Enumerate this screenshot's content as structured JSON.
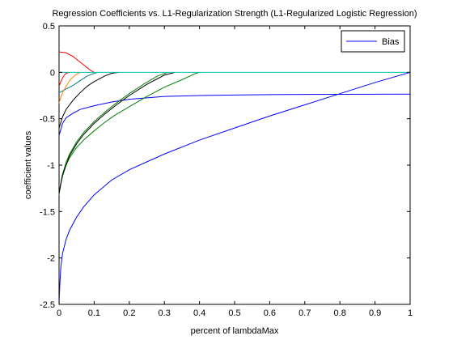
{
  "chart_data": {
    "type": "line",
    "title": "Regression Coefficients vs. L1-Regularization Strength (L1-Regularized Logistic Regression)",
    "xlabel": "percent of lambdaMax",
    "ylabel": "coefficient values",
    "xlim": [
      0,
      1
    ],
    "ylim": [
      -2.5,
      0.5
    ],
    "xticks": [
      0,
      0.1,
      0.2,
      0.3,
      0.4,
      0.5,
      0.6,
      0.7,
      0.8,
      0.9,
      1
    ],
    "xtick_labels": [
      "0",
      "0.1",
      "0.2",
      "0.3",
      "0.4",
      "0.5",
      "0.6",
      "0.7",
      "0.8",
      "0.9",
      "1"
    ],
    "yticks": [
      0.5,
      0,
      -0.5,
      -1,
      -1.5,
      -2,
      -2.5
    ],
    "ytick_labels": [
      "0.5",
      "0",
      "-0.5",
      "-1",
      "-1.5",
      "-2",
      "-2.5"
    ],
    "grid": false,
    "legend_position": "top-right",
    "legend": [
      {
        "label": "Bias",
        "color": "#0000ff"
      }
    ],
    "series": [
      {
        "name": "Bias",
        "color": "#0000ff",
        "x": [
          0.0,
          0.002,
          0.005,
          0.01,
          0.02,
          0.03,
          0.05,
          0.07,
          0.1,
          0.15,
          0.2,
          0.3,
          0.4,
          0.5,
          0.6,
          0.7,
          0.8,
          0.9,
          1.0
        ],
        "y": [
          -2.5,
          -2.3,
          -2.1,
          -1.95,
          -1.8,
          -1.7,
          -1.56,
          -1.45,
          -1.32,
          -1.16,
          -1.05,
          -0.88,
          -0.73,
          -0.6,
          -0.47,
          -0.35,
          -0.23,
          -0.11,
          0.0
        ]
      },
      {
        "color": "#0000ff",
        "x": [
          0.0,
          0.01,
          0.02,
          0.04,
          0.06,
          0.1,
          0.15,
          0.2,
          0.3,
          0.4,
          0.5,
          0.6,
          0.7,
          0.8,
          0.9,
          1.0
        ],
        "y": [
          -0.68,
          -0.55,
          -0.49,
          -0.44,
          -0.4,
          -0.36,
          -0.32,
          -0.29,
          -0.26,
          -0.25,
          -0.245,
          -0.24,
          -0.238,
          -0.237,
          -0.236,
          -0.235
        ]
      },
      {
        "color": "#008000",
        "x": [
          0.0,
          0.005,
          0.01,
          0.02,
          0.03,
          0.05,
          0.07,
          0.1,
          0.13,
          0.16,
          0.2,
          0.25,
          0.3,
          0.35,
          0.39,
          0.4
        ],
        "y": [
          -1.3,
          -1.2,
          -1.12,
          -1.0,
          -0.92,
          -0.81,
          -0.73,
          -0.63,
          -0.54,
          -0.46,
          -0.37,
          -0.26,
          -0.16,
          -0.08,
          -0.01,
          0.0
        ]
      },
      {
        "color": "#008000",
        "x": [
          0.0,
          0.005,
          0.01,
          0.02,
          0.03,
          0.05,
          0.07,
          0.1,
          0.13,
          0.16,
          0.2,
          0.24,
          0.28,
          0.31
        ],
        "y": [
          -1.32,
          -1.2,
          -1.1,
          -0.97,
          -0.88,
          -0.75,
          -0.65,
          -0.53,
          -0.43,
          -0.34,
          -0.23,
          -0.13,
          -0.04,
          0.0
        ]
      },
      {
        "color": "#000000",
        "x": [
          0.0,
          0.01,
          0.03,
          0.05,
          0.07,
          0.1,
          0.13,
          0.16,
          0.2,
          0.25,
          0.3,
          0.33
        ],
        "y": [
          -1.3,
          -1.1,
          -0.9,
          -0.77,
          -0.67,
          -0.55,
          -0.45,
          -0.36,
          -0.25,
          -0.13,
          -0.03,
          0.0
        ]
      },
      {
        "color": "#000000",
        "x": [
          0.0,
          0.01,
          0.02,
          0.04,
          0.06,
          0.08,
          0.1,
          0.13,
          0.15,
          0.17
        ],
        "y": [
          -0.6,
          -0.48,
          -0.4,
          -0.3,
          -0.22,
          -0.15,
          -0.1,
          -0.04,
          -0.01,
          0.0
        ]
      },
      {
        "color": "#008080",
        "x": [
          0.0,
          0.01,
          0.02,
          0.04,
          0.06,
          0.08,
          0.1,
          0.11
        ],
        "y": [
          -0.22,
          -0.2,
          -0.18,
          -0.14,
          -0.09,
          -0.04,
          -0.01,
          0.0
        ]
      },
      {
        "color": "#ff0000",
        "x": [
          0.0,
          0.01,
          0.02,
          0.03,
          0.04,
          0.05,
          0.06,
          0.07,
          0.08,
          0.09,
          0.1
        ],
        "y": [
          0.22,
          0.215,
          0.21,
          0.19,
          0.17,
          0.14,
          0.11,
          0.08,
          0.05,
          0.02,
          0.0
        ]
      },
      {
        "color": "#ff0000",
        "x": [
          0.0,
          0.005,
          0.01,
          0.015,
          0.02,
          0.03
        ],
        "y": [
          -0.15,
          -0.1,
          -0.06,
          -0.03,
          -0.01,
          0.0
        ]
      },
      {
        "color": "#ff8000",
        "x": [
          0.0,
          0.005,
          0.01,
          0.02,
          0.03,
          0.04,
          0.05,
          0.06
        ],
        "y": [
          -0.33,
          -0.27,
          -0.22,
          -0.15,
          -0.09,
          -0.05,
          -0.02,
          0.0
        ]
      },
      {
        "color": "#00bfbf",
        "x": [
          0.0,
          0.1,
          0.2,
          0.3,
          0.4,
          0.5,
          0.6,
          0.7,
          0.8,
          0.9,
          1.0
        ],
        "y": [
          0.0,
          0.0,
          0.0,
          0.0,
          0.0,
          0.0,
          0.0,
          0.0,
          0.0,
          0.0,
          0.0
        ]
      }
    ]
  }
}
